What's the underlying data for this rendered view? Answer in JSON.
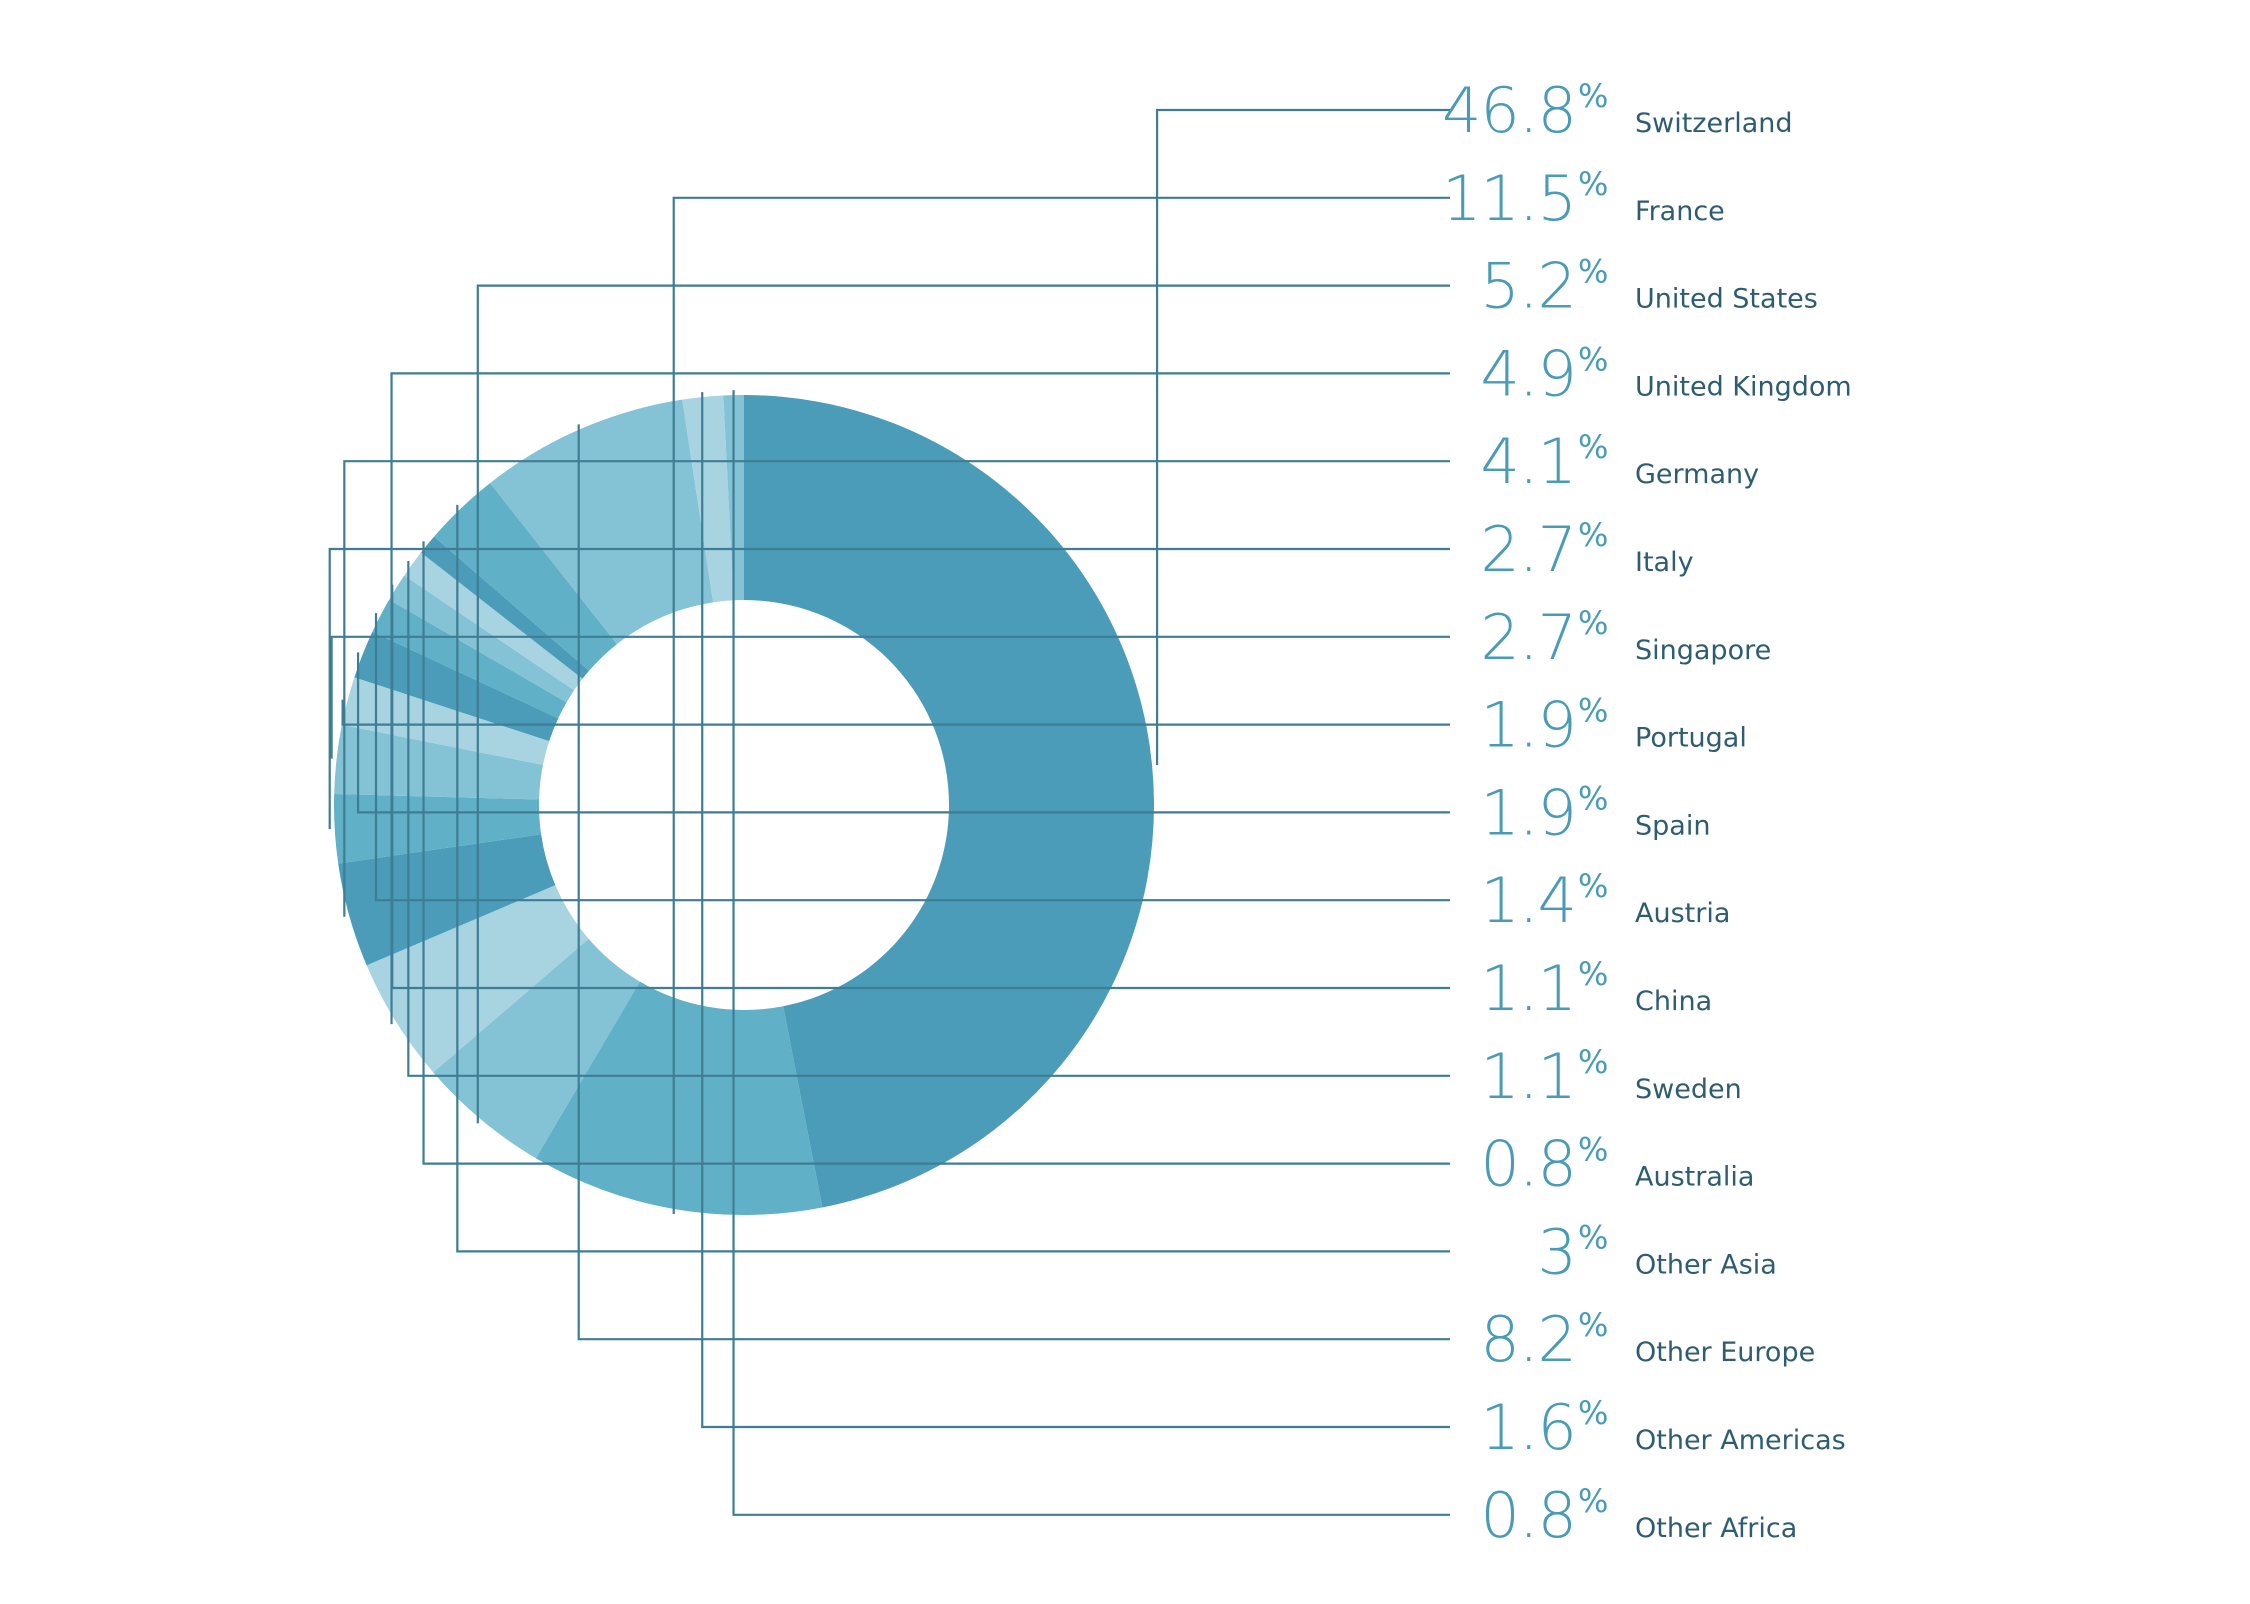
{
  "chart_data": {
    "type": "pie",
    "variant": "donut",
    "title": "",
    "percent_sign": "%",
    "colors": {
      "text": "#4a9bb8",
      "label": "#2e5d72",
      "leader": "#3f7d94"
    },
    "slices": [
      {
        "value": 46.8,
        "value_label": "46.8",
        "label": "Switzerland",
        "color": "#4a9cb9"
      },
      {
        "value": 11.5,
        "value_label": "11.5",
        "label": "France",
        "color": "#60b0c8"
      },
      {
        "value": 5.2,
        "value_label": "5.2",
        "label": "United States",
        "color": "#83c3d5"
      },
      {
        "value": 4.9,
        "value_label": "4.9",
        "label": "United Kingdom",
        "color": "#a8d3e0"
      },
      {
        "value": 4.1,
        "value_label": "4.1",
        "label": "Germany",
        "color": "#4a9cb9"
      },
      {
        "value": 2.7,
        "value_label": "2.7",
        "label": "Italy",
        "color": "#60b0c8"
      },
      {
        "value": 2.7,
        "value_label": "2.7",
        "label": "Singapore",
        "color": "#83c3d5"
      },
      {
        "value": 1.9,
        "value_label": "1.9",
        "label": "Portugal",
        "color": "#a8d3e0"
      },
      {
        "value": 1.9,
        "value_label": "1.9",
        "label": "Spain",
        "color": "#4a9cb9"
      },
      {
        "value": 1.4,
        "value_label": "1.4",
        "label": "Austria",
        "color": "#60b0c8"
      },
      {
        "value": 1.1,
        "value_label": "1.1",
        "label": "China",
        "color": "#83c3d5"
      },
      {
        "value": 1.1,
        "value_label": "1.1",
        "label": "Sweden",
        "color": "#a8d3e0"
      },
      {
        "value": 0.8,
        "value_label": "0.8",
        "label": "Australia",
        "color": "#4a9cb9"
      },
      {
        "value": 3,
        "value_label": "3",
        "label": "Other Asia",
        "color": "#60b0c8"
      },
      {
        "value": 8.2,
        "value_label": "8.2",
        "label": "Other Europe",
        "color": "#83c3d5"
      },
      {
        "value": 1.6,
        "value_label": "1.6",
        "label": "Other Americas",
        "color": "#a8d3e0"
      },
      {
        "value": 0.8,
        "value_label": "0.8",
        "label": "Other Africa",
        "color": "#83c3d5"
      }
    ]
  }
}
